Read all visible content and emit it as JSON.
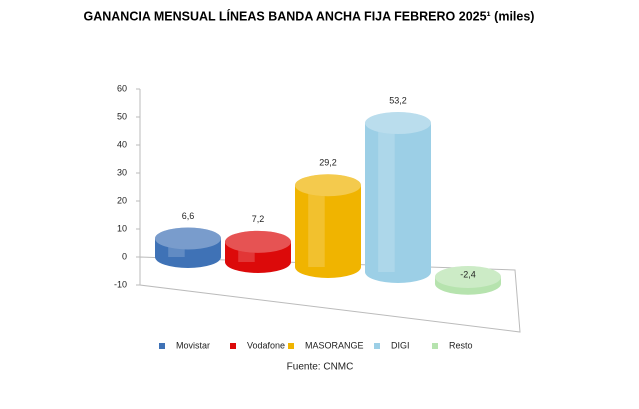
{
  "chart_data": {
    "type": "cylinder-bar",
    "title": "GANANCIA MENSUAL LÍNEAS BANDA ANCHA FIJA FEBRERO 2025¹ (miles)",
    "categories": [
      "Movistar",
      "Vodafone",
      "MASORANGE",
      "DIGI",
      "Resto"
    ],
    "values": [
      6.6,
      7.2,
      29.2,
      53.2,
      -2.4
    ],
    "value_labels": [
      "6,6",
      "7,2",
      "29,2",
      "53,2",
      "-2,4"
    ],
    "colors": [
      "#3f72b6",
      "#dc0a0a",
      "#f0b400",
      "#9ccfe6",
      "#b6e3ae"
    ],
    "ylim": [
      -10,
      60
    ],
    "yticks": [
      -10,
      0,
      10,
      20,
      30,
      40,
      50,
      60
    ],
    "source": "Fuente: CNMC"
  }
}
